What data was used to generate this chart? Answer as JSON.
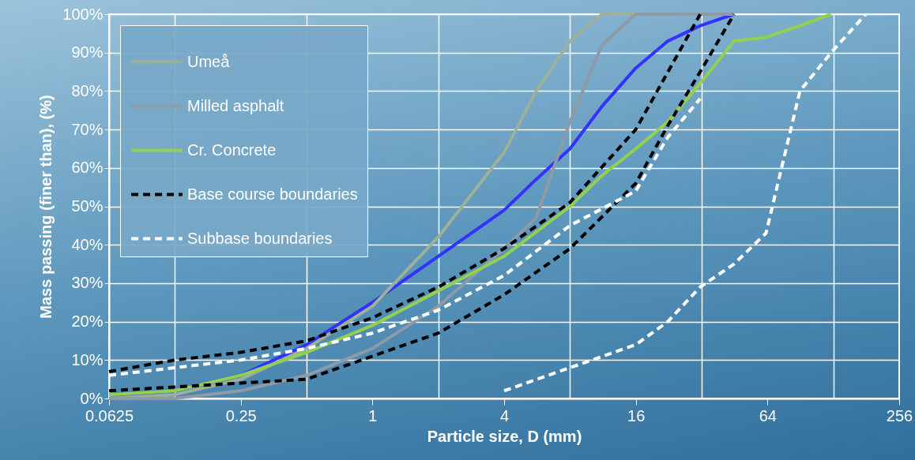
{
  "chart_data": {
    "type": "line",
    "xlabel": "Particle size, D (mm)",
    "ylabel": "Mass passing (finer than), (%)",
    "log": "x",
    "xlim": [
      0.0625,
      256
    ],
    "ylim": [
      0,
      100
    ],
    "xticks": [
      0.0625,
      {
        "value": 0.125,
        "label": null
      },
      0.25,
      {
        "value": 0.5,
        "label": null
      },
      1,
      {
        "value": 2,
        "label": null
      },
      4,
      {
        "value": 8,
        "label": null
      },
      16,
      {
        "value": 32,
        "label": null
      },
      64,
      {
        "value": 128,
        "label": null
      },
      256
    ],
    "yticks": [
      {
        "value": 0,
        "label": "0%"
      },
      {
        "value": 10,
        "label": "10%"
      },
      {
        "value": 20,
        "label": "20%"
      },
      {
        "value": 30,
        "label": "30%"
      },
      {
        "value": 40,
        "label": "40%"
      },
      {
        "value": 50,
        "label": "50%"
      },
      {
        "value": 60,
        "label": "60%"
      },
      {
        "value": 70,
        "label": "70%"
      },
      {
        "value": 80,
        "label": "80%"
      },
      {
        "value": 90,
        "label": "90%"
      },
      {
        "value": 100,
        "label": "100%"
      }
    ],
    "grid": true,
    "legend": "top left",
    "marker": "none",
    "series": [
      {
        "color": "#3333ff",
        "line_style": "solid",
        "x": [
          0.0625,
          0.125,
          0.25,
          0.5,
          1,
          2,
          4,
          5.6,
          8,
          11.2,
          16,
          22.4,
          31.5,
          45
        ],
        "values": [
          1,
          2,
          6,
          14,
          25,
          37,
          49,
          57,
          65,
          76,
          86,
          93,
          97,
          100
        ]
      },
      {
        "name": "Umeå",
        "color": "#9fb09a",
        "line_style": "solid",
        "x": [
          0.0625,
          0.125,
          0.25,
          0.5,
          1,
          2,
          4,
          5.6,
          8,
          11.2,
          16
        ],
        "values": [
          0,
          1,
          5,
          13,
          24,
          42,
          64,
          80,
          93,
          100,
          100
        ]
      },
      {
        "name": "Milled asphalt",
        "color": "#8e9aa6",
        "line_style": "solid",
        "x": [
          0.0625,
          0.125,
          0.25,
          0.5,
          1,
          2,
          4,
          5.6,
          8,
          11.2,
          16,
          45
        ],
        "values": [
          0,
          0,
          2,
          6,
          13,
          24,
          39,
          47,
          72,
          92,
          100,
          100
        ]
      },
      {
        "name": "Cr. Concrete",
        "color": "#92d050",
        "line_style": "solid",
        "x": [
          0.0625,
          0.125,
          0.25,
          0.5,
          1,
          2,
          4,
          8,
          11.2,
          16,
          22.4,
          31.5,
          45,
          63,
          90,
          125
        ],
        "values": [
          1,
          2,
          6,
          12,
          19,
          28,
          37,
          50,
          58,
          65,
          72,
          82,
          93,
          94,
          97,
          100
        ]
      },
      {
        "name": "Base course boundaries",
        "color": "#000000",
        "line_style": "dashed",
        "x": [
          0.0625,
          0.125,
          0.25,
          0.5,
          1,
          2,
          4,
          8,
          16,
          31.5
        ],
        "values": [
          7,
          10,
          12,
          15,
          21,
          29,
          39,
          51,
          70,
          100
        ]
      },
      {
        "color": "#000000",
        "line_style": "dashed",
        "x": [
          0.0625,
          0.125,
          0.25,
          0.5,
          1,
          2,
          4,
          8,
          16,
          22.4,
          31.5,
          45
        ],
        "values": [
          2,
          3,
          4,
          5,
          11,
          17,
          27,
          39,
          56,
          71,
          85,
          100
        ]
      },
      {
        "name": "Subbase boundaries",
        "color": "#ffffff",
        "line_style": "dashed",
        "x": [
          0.0625,
          0.125,
          0.25,
          0.5,
          1,
          2,
          4,
          8,
          16,
          22.4,
          31.5
        ],
        "values": [
          6,
          8,
          10,
          13,
          17,
          23,
          32,
          45,
          54,
          68,
          78
        ]
      },
      {
        "color": "#ffffff",
        "line_style": "dashed",
        "x": [
          4,
          8,
          16,
          22.4,
          31.5,
          45,
          63,
          90,
          125,
          180
        ],
        "values": [
          2,
          8,
          14,
          20,
          29,
          35,
          43,
          80,
          90,
          100
        ]
      }
    ]
  }
}
